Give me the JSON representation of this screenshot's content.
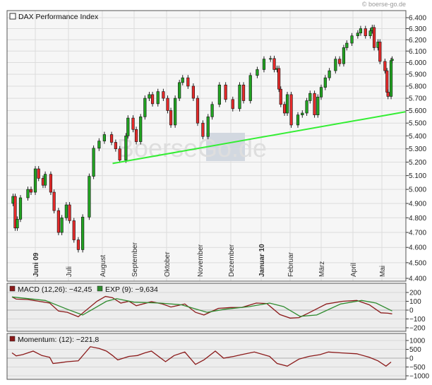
{
  "copyright": "© boerse-go.de",
  "watermark": "BoerseGo.de",
  "colors": {
    "up": "#22a422",
    "down": "#e62a2a",
    "trendline": "#33ee33",
    "macd": "#8b1a1a",
    "signal": "#2e8b2e",
    "momentum": "#8b1a1a",
    "grid": "#dcdcdc",
    "panel_bg": "#f6f6f6",
    "sub_bg": "#ededed"
  },
  "chart_data": [
    {
      "type": "candlestick",
      "title": "DAX Performance Index",
      "y_scale": "log",
      "ylim": [
        4400,
        6400
      ],
      "yticks": [
        6400,
        6300,
        6200,
        6100,
        6000,
        5900,
        5800,
        5700,
        5600,
        5500,
        5400,
        5300,
        5200,
        5100,
        5000,
        4900,
        4800,
        4700,
        4600,
        4500,
        4400
      ],
      "ytick_labels": [
        "6.400",
        "6.300",
        "6.200",
        "6.100",
        "6.000",
        "5.900",
        "5.800",
        "5.700",
        "5.600",
        "5.500",
        "5.400",
        "5.300",
        "5.200",
        "5.100",
        "5.000",
        "4.900",
        "4.800",
        "4.700",
        "4.600",
        "4.500",
        "4.400"
      ],
      "xlim": [
        "2009-05-05",
        "2010-05-24"
      ],
      "xticks": [
        {
          "date": "2009-06-01",
          "label": "Juni 09",
          "bold": true
        },
        {
          "date": "2009-07-01",
          "label": "Juli",
          "bold": false
        },
        {
          "date": "2009-08-01",
          "label": "August",
          "bold": false
        },
        {
          "date": "2009-09-01",
          "label": "September",
          "bold": false
        },
        {
          "date": "2009-10-01",
          "label": "Oktober",
          "bold": false
        },
        {
          "date": "2009-11-01",
          "label": "November",
          "bold": false
        },
        {
          "date": "2009-12-01",
          "label": "Dezember",
          "bold": false
        },
        {
          "date": "2010-01-01",
          "label": "Januar 10",
          "bold": true
        },
        {
          "date": "2010-02-01",
          "label": "Februar",
          "bold": false
        },
        {
          "date": "2010-03-01",
          "label": "März",
          "bold": false
        },
        {
          "date": "2010-04-01",
          "label": "April",
          "bold": false
        },
        {
          "date": "2010-05-01",
          "label": "Mai",
          "bold": false
        }
      ],
      "grid": true,
      "close": [
        [
          "2009-05-11",
          4950
        ],
        [
          "2009-05-13",
          4730
        ],
        [
          "2009-05-15",
          4790
        ],
        [
          "2009-05-18",
          4940
        ],
        [
          "2009-05-25",
          5000
        ],
        [
          "2009-05-28",
          4980
        ],
        [
          "2009-06-01",
          5150
        ],
        [
          "2009-06-04",
          5080
        ],
        [
          "2009-06-08",
          5030
        ],
        [
          "2009-06-10",
          5110
        ],
        [
          "2009-06-15",
          4980
        ],
        [
          "2009-06-18",
          4850
        ],
        [
          "2009-06-22",
          4700
        ],
        [
          "2009-06-25",
          4800
        ],
        [
          "2009-06-29",
          4890
        ],
        [
          "2009-07-02",
          4780
        ],
        [
          "2009-07-06",
          4650
        ],
        [
          "2009-07-10",
          4585
        ],
        [
          "2009-07-14",
          4805
        ],
        [
          "2009-07-20",
          5095
        ],
        [
          "2009-07-24",
          5305
        ],
        [
          "2009-07-29",
          5360
        ],
        [
          "2009-08-03",
          5410
        ],
        [
          "2009-08-10",
          5350
        ],
        [
          "2009-08-14",
          5300
        ],
        [
          "2009-08-18",
          5215
        ],
        [
          "2009-08-24",
          5400
        ],
        [
          "2009-08-26",
          5540
        ],
        [
          "2009-08-31",
          5450
        ],
        [
          "2009-09-03",
          5355
        ],
        [
          "2009-09-07",
          5550
        ],
        [
          "2009-09-11",
          5700
        ],
        [
          "2009-09-15",
          5730
        ],
        [
          "2009-09-18",
          5655
        ],
        [
          "2009-09-23",
          5755
        ],
        [
          "2009-09-28",
          5700
        ],
        [
          "2009-10-02",
          5600
        ],
        [
          "2009-10-05",
          5485
        ],
        [
          "2009-10-09",
          5700
        ],
        [
          "2009-10-13",
          5830
        ],
        [
          "2009-10-16",
          5870
        ],
        [
          "2009-10-21",
          5800
        ],
        [
          "2009-10-26",
          5700
        ],
        [
          "2009-10-30",
          5500
        ],
        [
          "2009-11-04",
          5395
        ],
        [
          "2009-11-09",
          5550
        ],
        [
          "2009-11-13",
          5650
        ],
        [
          "2009-11-20",
          5810
        ],
        [
          "2009-11-26",
          5690
        ],
        [
          "2009-12-03",
          5615
        ],
        [
          "2009-12-10",
          5810
        ],
        [
          "2009-12-14",
          5680
        ],
        [
          "2009-12-21",
          5890
        ],
        [
          "2009-12-28",
          5940
        ],
        [
          "2010-01-04",
          6030
        ],
        [
          "2010-01-11",
          6035
        ],
        [
          "2010-01-15",
          5940
        ],
        [
          "2010-01-18",
          5950
        ],
        [
          "2010-01-20",
          5775
        ],
        [
          "2010-01-22",
          5650
        ],
        [
          "2010-01-26",
          5580
        ],
        [
          "2010-01-29",
          5730
        ],
        [
          "2010-02-02",
          5485
        ],
        [
          "2010-02-08",
          5565
        ],
        [
          "2010-02-12",
          5580
        ],
        [
          "2010-02-16",
          5680
        ],
        [
          "2010-02-19",
          5740
        ],
        [
          "2010-02-23",
          5565
        ],
        [
          "2010-02-26",
          5710
        ],
        [
          "2010-03-01",
          5790
        ],
        [
          "2010-03-05",
          5870
        ],
        [
          "2010-03-09",
          5930
        ],
        [
          "2010-03-15",
          6030
        ],
        [
          "2010-03-19",
          5990
        ],
        [
          "2010-03-23",
          6130
        ],
        [
          "2010-03-26",
          6170
        ],
        [
          "2010-03-31",
          6235
        ],
        [
          "2010-04-06",
          6260
        ],
        [
          "2010-04-09",
          6300
        ],
        [
          "2010-04-14",
          6235
        ],
        [
          "2010-04-19",
          6280
        ],
        [
          "2010-04-21",
          6310
        ],
        [
          "2010-04-23",
          6130
        ],
        [
          "2010-04-27",
          6180
        ],
        [
          "2010-04-29",
          6010
        ],
        [
          "2010-05-04",
          5930
        ],
        [
          "2010-05-06",
          5750
        ],
        [
          "2010-05-07",
          5715
        ],
        [
          "2010-05-10",
          6017
        ],
        [
          "2010-05-11",
          6030
        ]
      ],
      "trendline": [
        {
          "date": "2009-08-11",
          "value": 5190
        },
        {
          "date": "2010-05-24",
          "value": 5590
        }
      ]
    },
    {
      "type": "line",
      "ylim": [
        -200,
        200
      ],
      "yticks": [
        200,
        100,
        0,
        -100,
        -200
      ],
      "ytick_labels": [
        "200",
        "100",
        "0",
        "−100",
        "−200"
      ],
      "series": [
        {
          "name": "MACD (12,26): −42,45",
          "key": "macd",
          "values": [
            [
              "2009-05-10",
              150
            ],
            [
              "2009-05-14",
              125
            ],
            [
              "2009-05-25",
              120
            ],
            [
              "2009-06-14",
              80
            ],
            [
              "2009-06-22",
              -10
            ],
            [
              "2009-06-30",
              -25
            ],
            [
              "2009-07-10",
              -75
            ],
            [
              "2009-07-27",
              100
            ],
            [
              "2009-08-04",
              155
            ],
            [
              "2009-08-11",
              140
            ],
            [
              "2009-08-19",
              80
            ],
            [
              "2009-08-27",
              100
            ],
            [
              "2009-09-03",
              50
            ],
            [
              "2009-09-17",
              95
            ],
            [
              "2009-09-27",
              70
            ],
            [
              "2009-10-05",
              35
            ],
            [
              "2009-10-18",
              70
            ],
            [
              "2009-10-28",
              -25
            ],
            [
              "2009-11-05",
              -55
            ],
            [
              "2009-11-19",
              20
            ],
            [
              "2009-12-01",
              30
            ],
            [
              "2009-12-12",
              30
            ],
            [
              "2009-12-27",
              80
            ],
            [
              "2010-01-07",
              75
            ],
            [
              "2010-01-21",
              -50
            ],
            [
              "2010-02-01",
              -90
            ],
            [
              "2010-02-09",
              -85
            ],
            [
              "2010-02-18",
              -30
            ],
            [
              "2010-03-06",
              70
            ],
            [
              "2010-03-22",
              100
            ],
            [
              "2010-04-05",
              110
            ],
            [
              "2010-04-18",
              60
            ],
            [
              "2010-04-30",
              -30
            ],
            [
              "2010-05-07",
              -35
            ],
            [
              "2010-05-11",
              -42.45
            ]
          ]
        },
        {
          "name": "EXP (9): −9,634",
          "key": "signal",
          "values": [
            [
              "2009-05-10",
              150
            ],
            [
              "2009-06-10",
              110
            ],
            [
              "2009-06-30",
              10
            ],
            [
              "2009-07-14",
              -55
            ],
            [
              "2009-08-05",
              100
            ],
            [
              "2009-08-15",
              130
            ],
            [
              "2009-09-01",
              90
            ],
            [
              "2009-09-25",
              80
            ],
            [
              "2009-10-15",
              60
            ],
            [
              "2009-11-08",
              -25
            ],
            [
              "2009-11-25",
              10
            ],
            [
              "2009-12-20",
              40
            ],
            [
              "2010-01-10",
              80
            ],
            [
              "2010-01-25",
              40
            ],
            [
              "2010-02-10",
              -70
            ],
            [
              "2010-02-25",
              -55
            ],
            [
              "2010-03-20",
              70
            ],
            [
              "2010-04-10",
              110
            ],
            [
              "2010-04-25",
              80
            ],
            [
              "2010-05-11",
              -9.634
            ]
          ]
        }
      ]
    },
    {
      "type": "line",
      "ylim": [
        -1000,
        1000
      ],
      "yticks": [
        1000,
        500,
        0,
        -500,
        -1000
      ],
      "ytick_labels": [
        "1000",
        "500",
        "0",
        "−500",
        "−1000"
      ],
      "series": [
        {
          "name": "Momentum: (12): −221,8",
          "key": "momentum",
          "values": [
            [
              "2009-05-10",
              300
            ],
            [
              "2009-05-14",
              130
            ],
            [
              "2009-05-20",
              200
            ],
            [
              "2009-05-30",
              400
            ],
            [
              "2009-06-07",
              150
            ],
            [
              "2009-06-14",
              50
            ],
            [
              "2009-06-17",
              -300
            ],
            [
              "2009-06-24",
              -250
            ],
            [
              "2009-06-30",
              -200
            ],
            [
              "2009-07-10",
              -150
            ],
            [
              "2009-07-21",
              650
            ],
            [
              "2009-07-29",
              550
            ],
            [
              "2009-08-05",
              400
            ],
            [
              "2009-08-11",
              150
            ],
            [
              "2009-08-16",
              -100
            ],
            [
              "2009-08-27",
              100
            ],
            [
              "2009-09-04",
              150
            ],
            [
              "2009-09-11",
              300
            ],
            [
              "2009-09-17",
              400
            ],
            [
              "2009-09-30",
              -200
            ],
            [
              "2009-10-08",
              150
            ],
            [
              "2009-10-18",
              350
            ],
            [
              "2009-10-28",
              -350
            ],
            [
              "2009-11-05",
              -100
            ],
            [
              "2009-11-16",
              400
            ],
            [
              "2009-11-24",
              0
            ],
            [
              "2009-12-04",
              100
            ],
            [
              "2009-12-12",
              200
            ],
            [
              "2009-12-25",
              350
            ],
            [
              "2010-01-10",
              100
            ],
            [
              "2010-01-18",
              -300
            ],
            [
              "2010-01-29",
              -450
            ],
            [
              "2010-02-09",
              -50
            ],
            [
              "2010-02-18",
              100
            ],
            [
              "2010-02-28",
              200
            ],
            [
              "2010-03-08",
              350
            ],
            [
              "2010-03-20",
              300
            ],
            [
              "2010-04-05",
              250
            ],
            [
              "2010-04-18",
              50
            ],
            [
              "2010-04-27",
              -150
            ],
            [
              "2010-05-05",
              -450
            ],
            [
              "2010-05-10",
              -221.8
            ]
          ]
        }
      ]
    }
  ]
}
